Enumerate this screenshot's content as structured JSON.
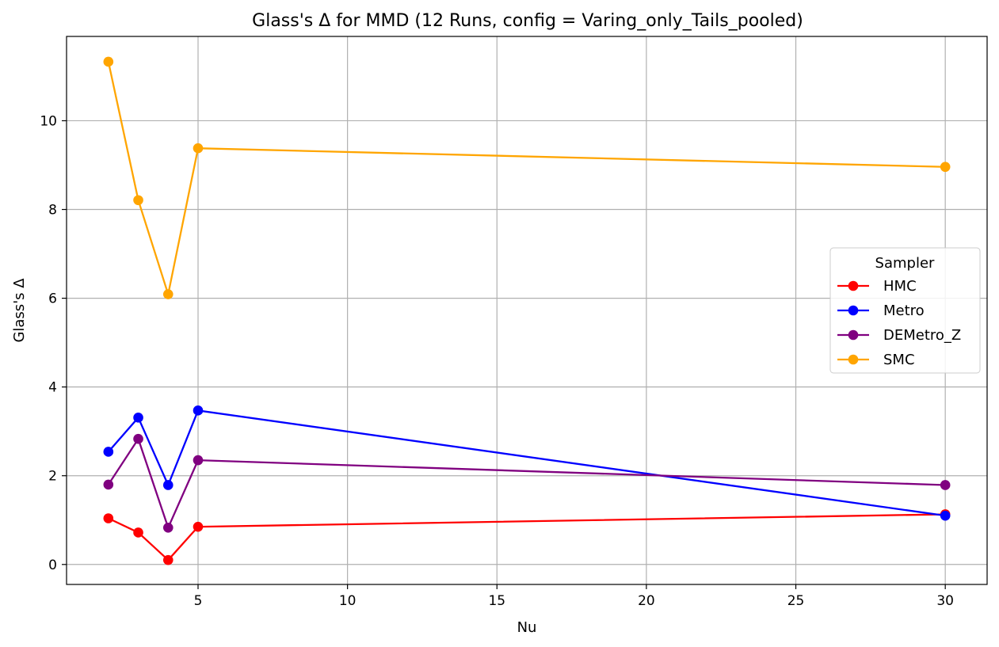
{
  "chart_data": {
    "type": "line",
    "title": "Glass's Δ for MMD (12 Runs, config = Varing_only_Tails_pooled)",
    "xlabel": "Nu",
    "ylabel": "Glass's Δ",
    "x": [
      2,
      3,
      4,
      5,
      30
    ],
    "xlim": [
      0.6,
      31.4
    ],
    "ylim": [
      -0.45,
      11.9
    ],
    "xticks": [
      5,
      10,
      15,
      20,
      25,
      30
    ],
    "yticks": [
      0,
      2,
      4,
      6,
      8,
      10
    ],
    "grid": true,
    "legend": {
      "title": "Sampler",
      "placement": "center-right"
    },
    "series": [
      {
        "name": "HMC",
        "color": "#ff0000",
        "values": [
          1.04,
          0.72,
          0.1,
          0.85,
          1.13
        ]
      },
      {
        "name": "Metro",
        "color": "#0000ff",
        "values": [
          2.54,
          3.31,
          1.79,
          3.47,
          1.1
        ]
      },
      {
        "name": "DEMetro_Z",
        "color": "#800080",
        "values": [
          1.8,
          2.83,
          0.83,
          2.35,
          1.79
        ]
      },
      {
        "name": "SMC",
        "color": "#ffa500",
        "values": [
          11.33,
          8.21,
          6.09,
          9.38,
          8.96
        ]
      }
    ]
  }
}
